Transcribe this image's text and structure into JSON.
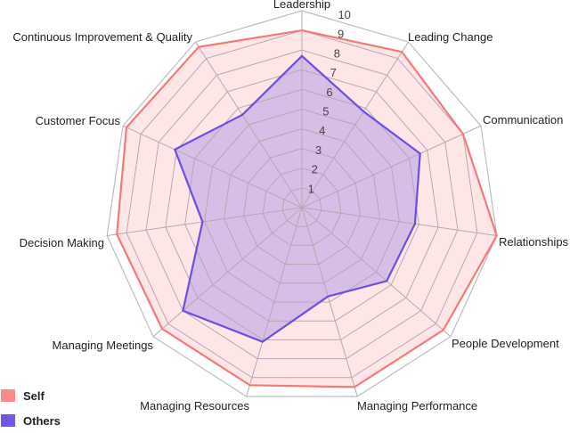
{
  "chart_data": {
    "type": "radar",
    "title": "",
    "axes": [
      "Leadership",
      "Leading Change",
      "Communication",
      "Relationships",
      "People Development",
      "Managing Performance",
      "Managing Resources",
      "Managing Meetings",
      "Decision Making",
      "Customer Focus",
      "Continuous Improvement & Quality"
    ],
    "ticks": [
      "1",
      "2",
      "3",
      "4",
      "5",
      "6",
      "7",
      "8",
      "9",
      "10"
    ],
    "rlim": [
      0,
      10
    ],
    "grid": true,
    "legend_position": "bottom-left",
    "series": [
      {
        "name": "Self",
        "line_color": "#f47a7a",
        "fill_color": "#ffe6e6",
        "values": [
          9.0,
          9.4,
          9.0,
          10.0,
          9.5,
          9.5,
          9.4,
          9.4,
          9.5,
          9.8,
          9.7
        ]
      },
      {
        "name": "Others",
        "line_color": "#6a50e0",
        "fill_color": "#c8b0e6",
        "values": [
          7.7,
          5.8,
          6.6,
          5.8,
          5.7,
          4.7,
          7.1,
          8.0,
          5.1,
          7.1,
          5.6
        ]
      }
    ]
  },
  "legend": {
    "items": [
      {
        "label": "Self",
        "color": "#f88a8a"
      },
      {
        "label": "Others",
        "color": "#7258e0"
      }
    ]
  }
}
